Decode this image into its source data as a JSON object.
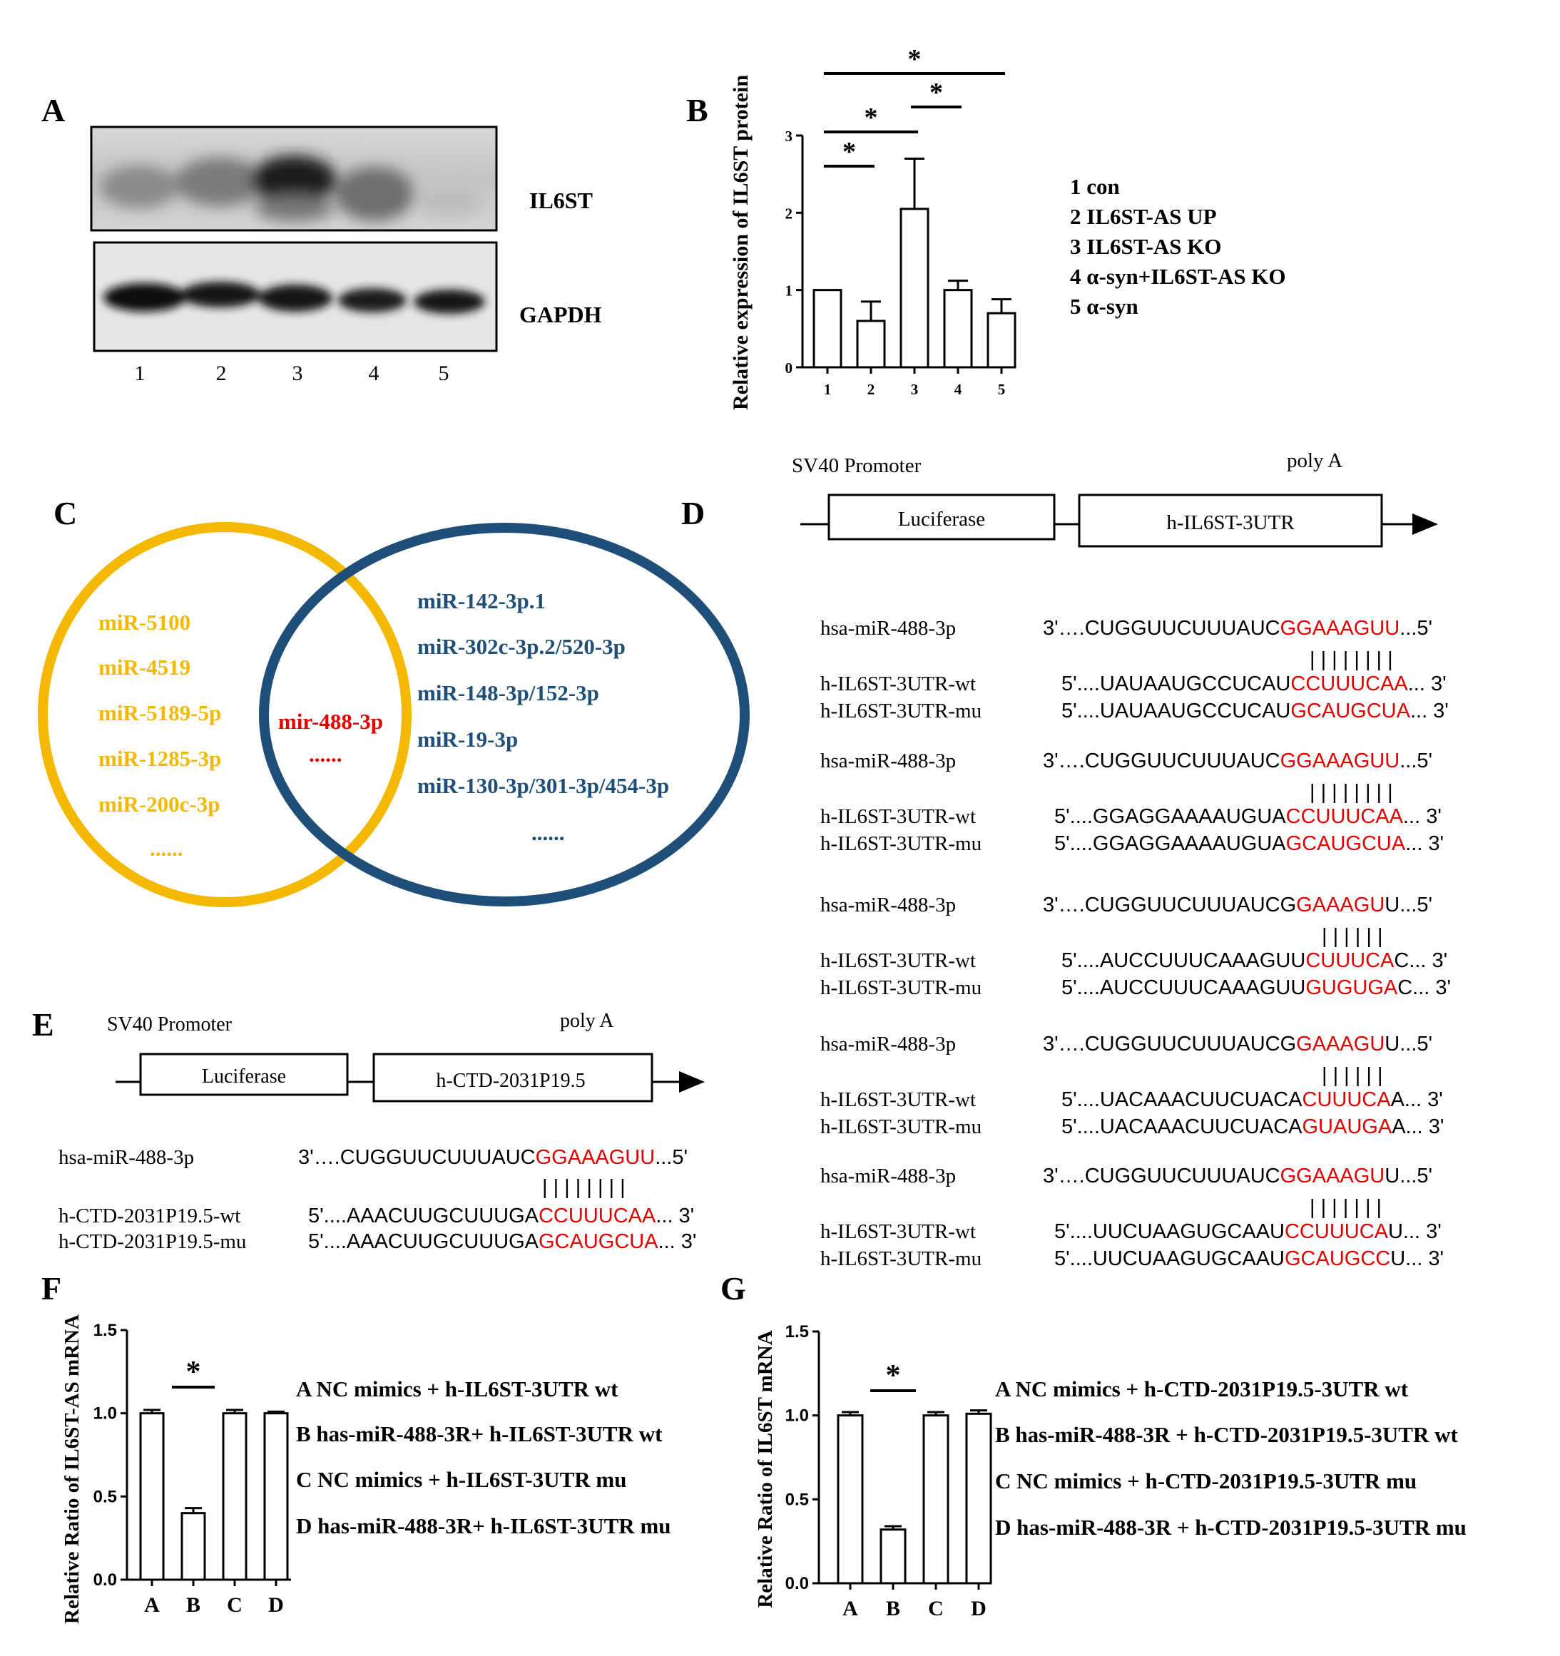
{
  "panels": {
    "A": {
      "letter": "A",
      "bands": [
        "IL6ST",
        "GAPDH"
      ],
      "lanes": [
        "1",
        "2",
        "3",
        "4",
        "5"
      ]
    },
    "B": {
      "letter": "B",
      "legend": [
        "1 con",
        "2 IL6ST-AS UP",
        "3 IL6ST-AS KO",
        "4 α-syn+IL6ST-AS KO",
        "5 α-syn"
      ]
    },
    "C": {
      "letter": "C",
      "left_set": [
        "miR-5100",
        "miR-4519",
        "miR-5189-5p",
        "miR-1285-3p",
        "miR-200c-3p",
        "......"
      ],
      "right_set": [
        "miR-142-3p.1",
        "miR-302c-3p.2/520-3p",
        "miR-148-3p/152-3p",
        "miR-19-3p",
        "miR-130-3p/301-3p/454-3p",
        "......"
      ],
      "overlap": [
        "mir-488-3p",
        "......"
      ],
      "colors": {
        "left": "#F5B800",
        "right": "#1F4E79",
        "overlap": "#E00000"
      }
    },
    "D": {
      "letter": "D",
      "promoter": "SV40 Promoter",
      "polyA": "poly A",
      "box1": "Luciferase",
      "box2": "h-IL6ST-3UTR",
      "blocks": [
        {
          "mirna_label": "hsa-miR-488-3p",
          "mirna_pre": "3'….CUGGUUCUUUAUC",
          "mirna_red": "GGAAAGUU",
          "mirna_post": "...5'",
          "bars": "| | | | | | | |",
          "wt_label": "h-IL6ST-3UTR-wt",
          "wt_pre": "5'....UAUAAUGCCUCAU",
          "wt_red": "CCUUUCAA",
          "wt_post": "... 3'",
          "mu_label": "h-IL6ST-3UTR-mu",
          "mu_pre": "5'....UAUAAUGCCUCAU",
          "mu_red": "GCAUGCUA",
          "mu_post": "... 3'"
        },
        {
          "mirna_label": "hsa-miR-488-3p",
          "mirna_pre": "3'….CUGGUUCUUUAUC",
          "mirna_red": "GGAAAGUU",
          "mirna_post": "...5'",
          "bars": "| | | | | | | |",
          "wt_label": "h-IL6ST-3UTR-wt",
          "wt_pre": "5'....GGAGGAAAAUGUA",
          "wt_red": "CCUUUCAA",
          "wt_post": "... 3'",
          "mu_label": "h-IL6ST-3UTR-mu",
          "mu_pre": "5'....GGAGGAAAAUGUA",
          "mu_red": "GCAUGCUA",
          "mu_post": "... 3'"
        },
        {
          "mirna_label": "hsa-miR-488-3p",
          "mirna_pre": "3'….CUGGUUCUUUAUCG",
          "mirna_red": "GAAAGU",
          "mirna_post": "U...5'",
          "bars": "| | | | | |",
          "wt_label": "h-IL6ST-3UTR-wt",
          "wt_pre": "5'....AUCCUUUCAAAGUU",
          "wt_red": "CUUUCA",
          "wt_post": "C... 3'",
          "mu_label": "h-IL6ST-3UTR-mu",
          "mu_pre": "5'....AUCCUUUCAAAGUU",
          "mu_red": "GUGUGA",
          "mu_post": "C... 3'"
        },
        {
          "mirna_label": "hsa-miR-488-3p",
          "mirna_pre": "3'….CUGGUUCUUUAUCG",
          "mirna_red": "GAAAGU",
          "mirna_post": "U...5'",
          "bars": "| | | | | |",
          "wt_label": "h-IL6ST-3UTR-wt",
          "wt_pre": "5'....UACAAACUUCUACA",
          "wt_red": "CUUUCA",
          "wt_post": "A... 3'",
          "mu_label": "h-IL6ST-3UTR-mu",
          "mu_pre": "5'....UACAAACUUCUACA",
          "mu_red": "GUAUGA",
          "mu_post": "A... 3'"
        },
        {
          "mirna_label": "hsa-miR-488-3p",
          "mirna_pre": "3'….CUGGUUCUUUAUC",
          "mirna_red": "GGAAAGU",
          "mirna_post": "U...5'",
          "bars": "| | | | | | |",
          "wt_label": "h-IL6ST-3UTR-wt",
          "wt_pre": "5'....UUCUAAGUGCAAU",
          "wt_red": "CCUUUCA",
          "wt_post": "U... 3'",
          "mu_label": "h-IL6ST-3UTR-mu",
          "mu_pre": "5'....UUCUAAGUGCAAU",
          "mu_red": "GCAUGCC",
          "mu_post": "U... 3'"
        }
      ]
    },
    "E": {
      "letter": "E",
      "promoter": "SV40 Promoter",
      "polyA": "poly A",
      "box1": "Luciferase",
      "box2": "h-CTD-2031P19.5",
      "block": {
        "mirna_label": "hsa-miR-488-3p",
        "mirna_pre": "3'….CUGGUUCUUUAUC",
        "mirna_red": "GGAAAGUU",
        "mirna_post": "...5'",
        "bars": "| | | | | | | |",
        "wt_label": "h-CTD-2031P19.5-wt",
        "wt_pre": "5'....AAACUUGCUUUGA",
        "wt_red": "CCUUUCAA",
        "wt_post": "... 3'",
        "mu_label": "h-CTD-2031P19.5-mu",
        "mu_pre": "5'....AAACUUGCUUUGA",
        "mu_red": "GCAUGCUA",
        "mu_post": "... 3'"
      }
    },
    "F": {
      "letter": "F",
      "legend": [
        "A NC mimics + h-IL6ST-3UTR wt",
        "B has-miR-488-3R+ h-IL6ST-3UTR wt",
        "C NC mimics + h-IL6ST-3UTR mu",
        "D has-miR-488-3R+ h-IL6ST-3UTR mu"
      ]
    },
    "G": {
      "letter": "G",
      "legend": [
        "A NC mimics + h-CTD-2031P19.5-3UTR wt",
        "B has-miR-488-3R + h-CTD-2031P19.5-3UTR wt",
        "C NC mimics + h-CTD-2031P19.5-3UTR mu",
        "D has-miR-488-3R + h-CTD-2031P19.5-3UTR mu"
      ]
    }
  },
  "chart_data": [
    {
      "id": "B",
      "type": "bar",
      "ylabel": "Relative expression  of IL6ST protein",
      "categories": [
        "1",
        "2",
        "3",
        "4",
        "5"
      ],
      "values": [
        1.0,
        0.6,
        2.05,
        1.0,
        0.7
      ],
      "errors": [
        0.0,
        0.25,
        0.65,
        0.12,
        0.18
      ],
      "ylim": [
        0,
        3
      ],
      "yticks": [
        "0",
        "1",
        "2",
        "3"
      ],
      "significance": [
        {
          "from": "1",
          "to": "2",
          "label": "*"
        },
        {
          "from": "1",
          "to": "3",
          "label": "*"
        },
        {
          "from": "3",
          "to": "4",
          "label": "*"
        },
        {
          "from": "1",
          "to": "5",
          "label": "*"
        }
      ]
    },
    {
      "id": "F",
      "type": "bar",
      "ylabel": "Relative Ratio of IL6ST-AS mRNA",
      "categories": [
        "A",
        "B",
        "C",
        "D"
      ],
      "values": [
        1.0,
        0.4,
        1.0,
        1.0
      ],
      "errors": [
        0.02,
        0.03,
        0.02,
        0.01
      ],
      "ylim": [
        0,
        1.5
      ],
      "yticks": [
        "0.0",
        "0.5",
        "1.0",
        "1.5"
      ],
      "significance": [
        {
          "from": "A",
          "to": "C",
          "label": "*"
        }
      ]
    },
    {
      "id": "G",
      "type": "bar",
      "ylabel": "Relative Ratio of IL6ST mRNA",
      "categories": [
        "A",
        "B",
        "C",
        "D"
      ],
      "values": [
        1.0,
        0.32,
        1.0,
        1.01
      ],
      "errors": [
        0.02,
        0.02,
        0.02,
        0.02
      ],
      "ylim": [
        0,
        1.5
      ],
      "yticks": [
        "0.0",
        "0.5",
        "1.0",
        "1.5"
      ],
      "significance": [
        {
          "from": "A",
          "to": "C",
          "label": "*"
        }
      ]
    }
  ]
}
